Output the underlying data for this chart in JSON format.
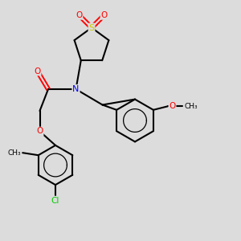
{
  "background_color": "#dcdcdc",
  "bond_color": "#000000",
  "atom_colors": {
    "N": "#0000ff",
    "O": "#ff0000",
    "S": "#cccc00",
    "Cl": "#00cc00",
    "C": "#000000"
  },
  "figsize": [
    3.0,
    3.0
  ],
  "dpi": 100,
  "xlim": [
    0,
    10
  ],
  "ylim": [
    0,
    10
  ]
}
